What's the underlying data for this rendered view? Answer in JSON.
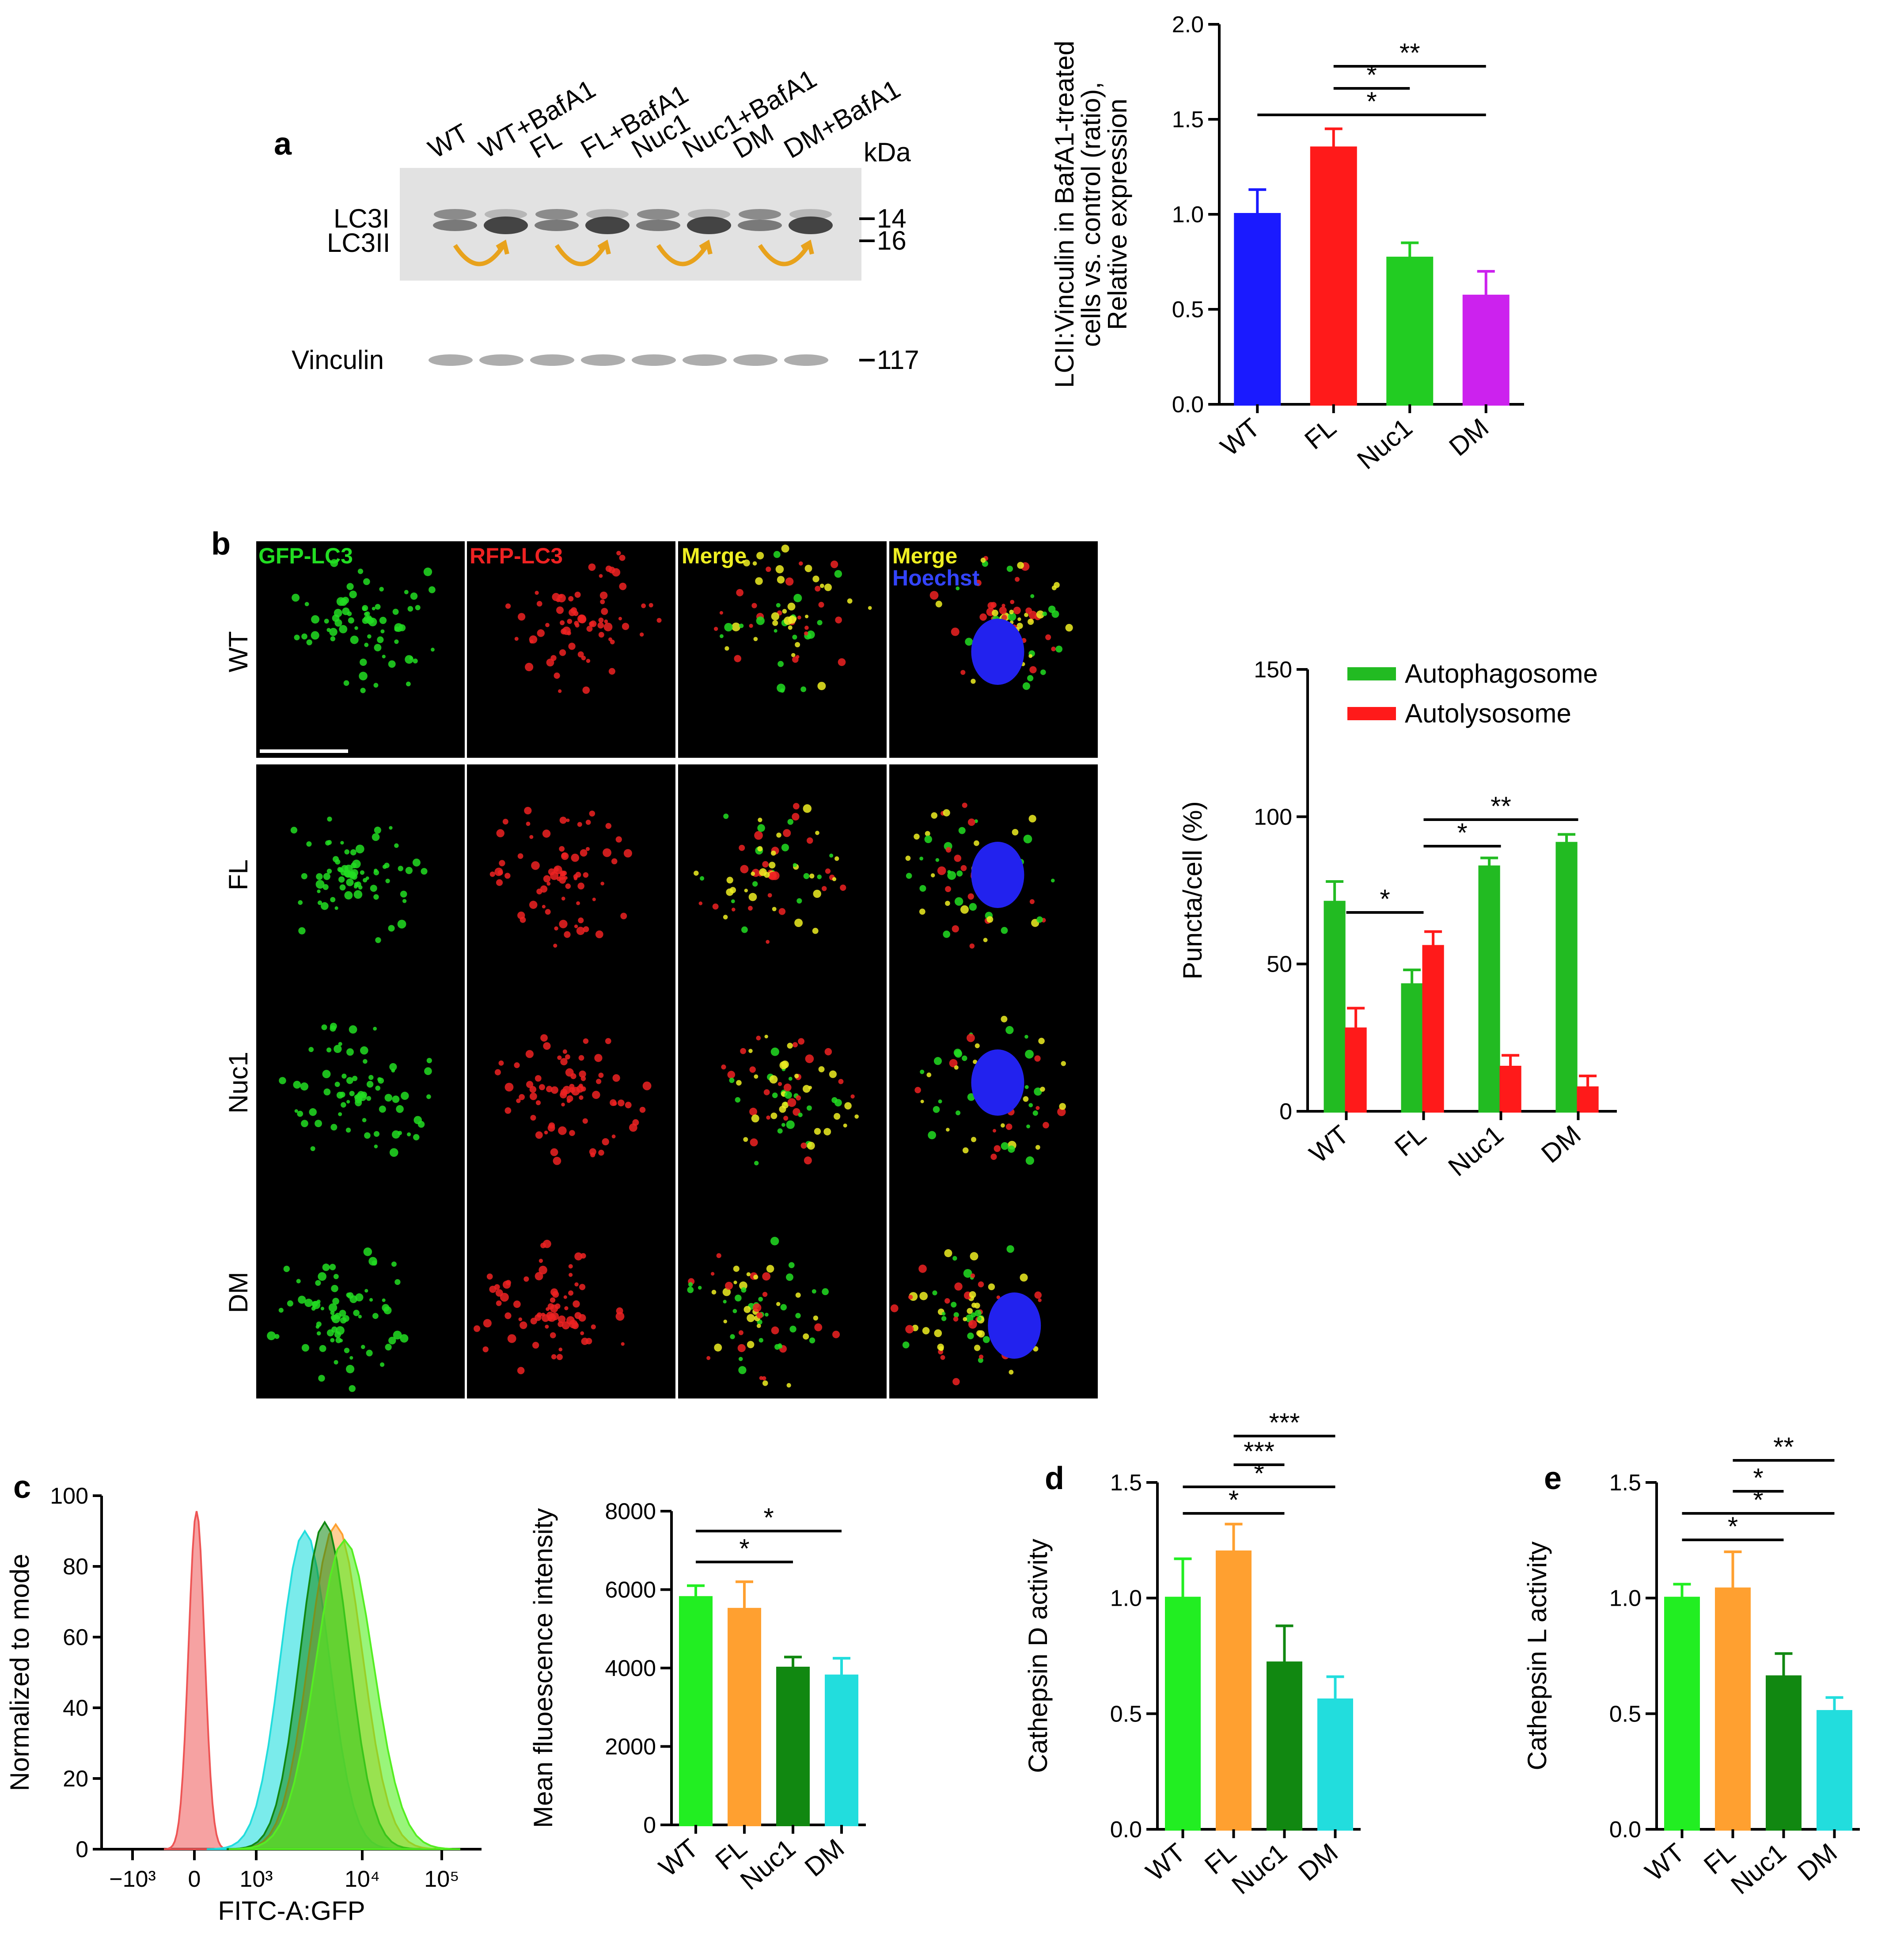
{
  "panels": {
    "a": "a",
    "b": "b",
    "c": "c",
    "d": "d",
    "e": "e"
  },
  "blot": {
    "lanes": [
      "WT",
      "WT+BafA1",
      "FL",
      "FL+BafA1",
      "Nuc1",
      "Nuc1+BafA1",
      "DM",
      "DM+BafA1"
    ],
    "kda_label": "kDa",
    "band_labels": [
      "LC3I",
      "LC3II"
    ],
    "markers": [
      "14",
      "16"
    ],
    "vinculin_label": "Vinculin",
    "vinculin_marker": "117"
  },
  "microscopy": {
    "channels": [
      "GFP-LC3",
      "RFP-LC3",
      "Merge",
      "Merge"
    ],
    "channel_sub": "Hoechst",
    "rows": [
      "WT",
      "FL",
      "Nuc1",
      "DM"
    ],
    "colors": {
      "gfp": "#22dd22",
      "rfp": "#ee2222",
      "merge": "#eeee22",
      "hoechst": "#2222ee"
    }
  },
  "flow": {
    "ylabel": "Normalized to mode",
    "xlabel": "FITC-A:GFP",
    "yticks": [
      "0",
      "20",
      "40",
      "60",
      "80",
      "100"
    ],
    "xticks": [
      "−10³",
      "0",
      "10³",
      "10⁴",
      "10⁵"
    ]
  },
  "chart_data": [
    {
      "type": "bar",
      "categories": [
        "WT",
        "FL",
        "Nuc1",
        "DM"
      ],
      "values": [
        1.0,
        1.35,
        0.77,
        0.57
      ],
      "errors": [
        0.13,
        0.1,
        0.08,
        0.13
      ],
      "colors": [
        "#1a1aff",
        "#ff1a1a",
        "#22cc22",
        "#cc22ee"
      ],
      "ylabel_lines": [
        "LCII:Vinculin in BafA1-treated",
        "cells vs. control (ratio),",
        "Relative expression"
      ],
      "yticks": [
        "0.0",
        "0.5",
        "1.0",
        "1.5",
        "2.0"
      ],
      "ylim": [
        0,
        2.0
      ],
      "significance": [
        {
          "from": 1,
          "to": 3,
          "label": "**"
        },
        {
          "from": 1,
          "to": 2,
          "label": "*"
        },
        {
          "from": 0,
          "to": 3,
          "label": "*"
        }
      ]
    },
    {
      "type": "bar",
      "categories": [
        "WT",
        "FL",
        "Nuc1",
        "DM"
      ],
      "series": [
        {
          "name": "Autophagosome",
          "values": [
            71,
            43,
            83,
            91
          ],
          "errors": [
            7,
            5,
            3,
            3
          ],
          "color": "#22bb22"
        },
        {
          "name": "Autolysosome",
          "values": [
            28,
            56,
            15,
            8
          ],
          "errors": [
            7,
            5,
            4,
            4
          ],
          "color": "#ff1a1a"
        }
      ],
      "ylabel": "Puncta/cell (%)",
      "yticks": [
        "0",
        "50",
        "100",
        "150"
      ],
      "ylim": [
        0,
        150
      ],
      "legend": "top-right",
      "significance": [
        {
          "from": 1,
          "to": 3,
          "label": "**"
        },
        {
          "from": 1,
          "to": 2,
          "label": "*"
        },
        {
          "from": 0,
          "to": 1,
          "label": "*"
        }
      ]
    },
    {
      "type": "bar",
      "categories": [
        "WT",
        "FL",
        "Nuc1",
        "DM"
      ],
      "values": [
        5800,
        5500,
        4000,
        3800
      ],
      "errors": [
        300,
        700,
        280,
        450
      ],
      "colors": [
        "#22ee22",
        "#ffa030",
        "#118811",
        "#22dddd"
      ],
      "ylabel": "Mean fluoescence intensity",
      "yticks": [
        "0",
        "2000",
        "4000",
        "6000",
        "8000"
      ],
      "ylim": [
        0,
        8000
      ],
      "significance": [
        {
          "from": 0,
          "to": 3,
          "label": "*"
        },
        {
          "from": 0,
          "to": 2,
          "label": "*"
        }
      ]
    },
    {
      "type": "bar",
      "categories": [
        "WT",
        "FL",
        "Nuc1",
        "DM"
      ],
      "values": [
        1.0,
        1.2,
        0.72,
        0.56
      ],
      "errors": [
        0.17,
        0.12,
        0.16,
        0.1
      ],
      "colors": [
        "#22ee22",
        "#ffa030",
        "#118811",
        "#22dddd"
      ],
      "ylabel": "Cathepsin D activity",
      "yticks": [
        "0.0",
        "0.5",
        "1.0",
        "1.5"
      ],
      "ylim": [
        0,
        1.5
      ],
      "significance": [
        {
          "from": 1,
          "to": 3,
          "label": "***"
        },
        {
          "from": 1,
          "to": 2,
          "label": "***"
        },
        {
          "from": 0,
          "to": 3,
          "label": "*"
        },
        {
          "from": 0,
          "to": 2,
          "label": "*"
        }
      ]
    },
    {
      "type": "bar",
      "categories": [
        "WT",
        "FL",
        "Nuc1",
        "DM"
      ],
      "values": [
        1.0,
        1.04,
        0.66,
        0.51
      ],
      "errors": [
        0.06,
        0.16,
        0.1,
        0.06
      ],
      "colors": [
        "#22ee22",
        "#ffa030",
        "#118811",
        "#22dddd"
      ],
      "ylabel": "Cathepsin L activity",
      "yticks": [
        "0.0",
        "0.5",
        "1.0",
        "1.5"
      ],
      "ylim": [
        0,
        1.5
      ],
      "significance": [
        {
          "from": 1,
          "to": 3,
          "label": "**"
        },
        {
          "from": 1,
          "to": 2,
          "label": "*"
        },
        {
          "from": 0,
          "to": 3,
          "label": "*"
        },
        {
          "from": 0,
          "to": 2,
          "label": "*"
        }
      ]
    }
  ]
}
